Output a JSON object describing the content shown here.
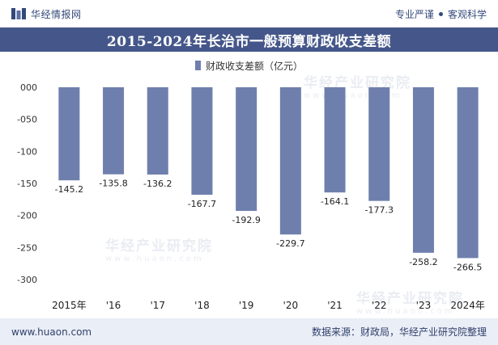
{
  "header": {
    "brand": "华经情报网",
    "tagline_left": "专业严谨",
    "tagline_right": "客观科学"
  },
  "footer": {
    "url": "www.huaon.com",
    "source": "数据来源：财政局，华经产业研究院整理"
  },
  "watermark": {
    "text": "华经产业研究院",
    "url": "www.huaon.com"
  },
  "colors": {
    "bar": "#6f7fad",
    "title_band": "#45578a",
    "footer_band": "#eaeef6"
  },
  "chart_data": {
    "type": "bar",
    "title": "2015-2024年长治市一般预算财政收支差额",
    "categories": [
      "2015年",
      "'16",
      "'17",
      "'18",
      "'19",
      "'20",
      "'21",
      "'22",
      "'23",
      "2024年"
    ],
    "series": [
      {
        "name": "财政收支差额（亿元）",
        "values": [
          -145.2,
          -135.8,
          -136.2,
          -167.7,
          -192.9,
          -229.7,
          -164.1,
          -177.3,
          -258.2,
          -266.5
        ]
      }
    ],
    "value_labels": [
      "-145.2",
      "-135.8",
      "-136.2",
      "-167.7",
      "-192.9",
      "-229.7",
      "-164.1",
      "-177.3",
      "-258.2",
      "-266.5"
    ],
    "y_ticks": [
      0,
      -50,
      -100,
      -150,
      -200,
      -250,
      -300
    ],
    "y_tick_labels": [
      "000",
      "-050",
      "-100",
      "-150",
      "-200",
      "-250",
      "-300"
    ],
    "ylim": [
      -300,
      0
    ],
    "grid": false,
    "legend_position": "top-center"
  }
}
